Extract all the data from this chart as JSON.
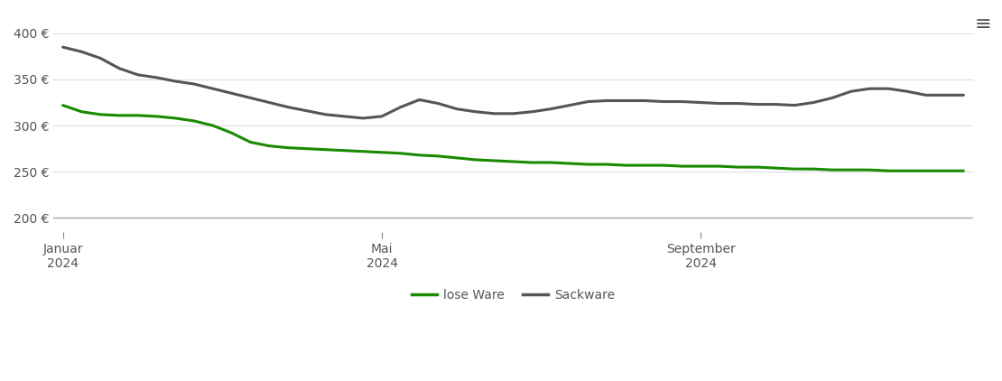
{
  "lose_ware_x": [
    0,
    1,
    2,
    3,
    4,
    5,
    6,
    7,
    8,
    9,
    10,
    11,
    12,
    13,
    14,
    15,
    16,
    17,
    18,
    19,
    20,
    21,
    22,
    23,
    24,
    25,
    26,
    27,
    28,
    29,
    30,
    31,
    32,
    33,
    34,
    35,
    36,
    37,
    38,
    39,
    40,
    41,
    42,
    43,
    44,
    45,
    46,
    47,
    48
  ],
  "lose_ware_y": [
    322,
    315,
    312,
    311,
    311,
    310,
    308,
    305,
    300,
    292,
    282,
    278,
    276,
    275,
    274,
    273,
    272,
    271,
    270,
    268,
    267,
    265,
    263,
    262,
    261,
    260,
    260,
    259,
    258,
    258,
    257,
    257,
    257,
    256,
    256,
    256,
    255,
    255,
    254,
    253,
    253,
    252,
    252,
    252,
    251,
    251,
    251,
    251,
    251
  ],
  "sackware_x": [
    0,
    1,
    2,
    3,
    4,
    5,
    6,
    7,
    8,
    9,
    10,
    11,
    12,
    13,
    14,
    15,
    16,
    17,
    18,
    19,
    20,
    21,
    22,
    23,
    24,
    25,
    26,
    27,
    28,
    29,
    30,
    31,
    32,
    33,
    34,
    35,
    36,
    37,
    38,
    39,
    40,
    41,
    42,
    43,
    44,
    45,
    46,
    47,
    48
  ],
  "sackware_y": [
    385,
    380,
    373,
    362,
    355,
    352,
    348,
    345,
    340,
    335,
    330,
    325,
    320,
    316,
    312,
    310,
    308,
    310,
    320,
    328,
    324,
    318,
    315,
    313,
    313,
    315,
    318,
    322,
    326,
    327,
    327,
    327,
    326,
    326,
    325,
    324,
    324,
    323,
    323,
    322,
    325,
    330,
    337,
    340,
    340,
    337,
    333,
    333,
    333
  ],
  "lose_ware_color": "#1a8a00",
  "sackware_color": "#555555",
  "background_color": "#ffffff",
  "grid_color": "#dddddd",
  "xlabel_jan": "Januar\n2024",
  "xlabel_mai": "Mai\n2024",
  "xlabel_sep": "September\n2024",
  "ytick_labels": [
    "200 €",
    "250 €",
    "300 €",
    "350 €",
    "400 €"
  ],
  "ytick_values": [
    200,
    250,
    300,
    350,
    400
  ],
  "ylim": [
    185,
    415
  ],
  "legend_lose": "lose Ware",
  "legend_sack": "Sackware",
  "linewidth": 2.2
}
